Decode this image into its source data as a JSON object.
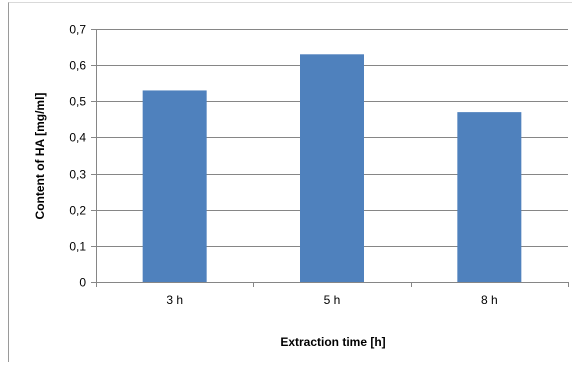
{
  "chart_data": {
    "type": "bar",
    "categories": [
      "3 h",
      "5 h",
      "8 h"
    ],
    "values": [
      0.53,
      0.63,
      0.47
    ],
    "title": "",
    "xlabel": "Extraction time [h]",
    "ylabel": "Content of HA [mg/ml]",
    "ylim": [
      0,
      0.7
    ],
    "yticks": [
      "0",
      "0,1",
      "0,2",
      "0,3",
      "0,4",
      "0,5",
      "0,6",
      "0,7"
    ],
    "grid": true,
    "legend": "none",
    "bar_color": "#4F81BD",
    "grid_color": "#868686"
  }
}
